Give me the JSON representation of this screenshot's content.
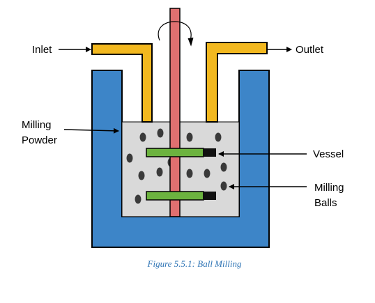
{
  "labels": {
    "inlet": "Inlet",
    "outlet": "Outlet",
    "milling_powder_line1": "Milling",
    "milling_powder_line2": "Powder",
    "vessel": "Vessel",
    "milling_balls_line1": "Milling",
    "milling_balls_line2": "Balls"
  },
  "caption": "Figure 5.5.1: Ball Milling",
  "colors": {
    "jacket": "#3d85c8",
    "pipe": "#f2b81f",
    "shaft": "#e07070",
    "powder": "#d9d9d9",
    "paddle_green": "#6cb33f",
    "paddle_black": "#111111",
    "ball": "#3a3a3a",
    "caption": "#2e74b5"
  },
  "icons": {
    "rotation": "rotation-arrow-icon"
  }
}
